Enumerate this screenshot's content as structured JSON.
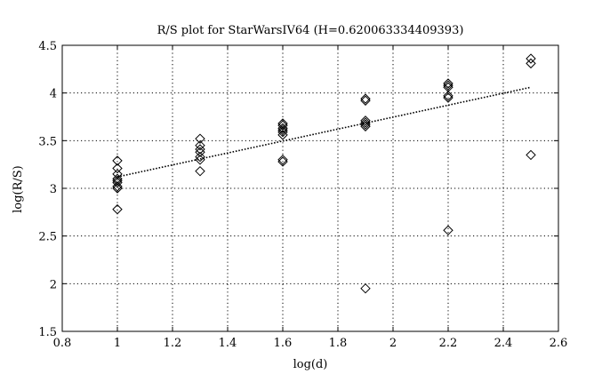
{
  "chart_data": {
    "type": "scatter",
    "title": "R/S plot for StarWarsIV64 (H=0.620063334409393)",
    "xlabel": "log(d)",
    "ylabel": "log(R/S)",
    "xlim": [
      0.8,
      2.6
    ],
    "ylim": [
      1.5,
      4.5
    ],
    "xticks": [
      0.8,
      1,
      1.2,
      1.4,
      1.6,
      1.8,
      2,
      2.2,
      2.4,
      2.6
    ],
    "xtick_labels": [
      "0.8",
      "1",
      "1.2",
      "1.4",
      "1.6",
      "1.8",
      "2",
      "2.2",
      "2.4",
      "2.6"
    ],
    "yticks": [
      1.5,
      2,
      2.5,
      3,
      3.5,
      4,
      4.5
    ],
    "ytick_labels": [
      "1.5",
      "2",
      "2.5",
      "3",
      "3.5",
      "4",
      "4.5"
    ],
    "grid": true,
    "marker": "diamond",
    "points": [
      [
        1.0,
        3.29
      ],
      [
        1.0,
        3.21
      ],
      [
        1.0,
        3.15
      ],
      [
        1.0,
        3.1
      ],
      [
        1.0,
        3.08
      ],
      [
        1.0,
        3.06
      ],
      [
        1.0,
        3.02
      ],
      [
        1.0,
        3.0
      ],
      [
        1.0,
        2.78
      ],
      [
        1.3,
        3.52
      ],
      [
        1.3,
        3.45
      ],
      [
        1.3,
        3.41
      ],
      [
        1.3,
        3.38
      ],
      [
        1.3,
        3.33
      ],
      [
        1.3,
        3.3
      ],
      [
        1.3,
        3.18
      ],
      [
        1.6,
        3.68
      ],
      [
        1.6,
        3.66
      ],
      [
        1.6,
        3.63
      ],
      [
        1.6,
        3.61
      ],
      [
        1.6,
        3.59
      ],
      [
        1.6,
        3.56
      ],
      [
        1.6,
        3.3
      ],
      [
        1.6,
        3.28
      ],
      [
        1.9,
        3.94
      ],
      [
        1.9,
        3.92
      ],
      [
        1.9,
        3.71
      ],
      [
        1.9,
        3.69
      ],
      [
        1.9,
        3.67
      ],
      [
        1.9,
        3.65
      ],
      [
        1.9,
        1.95
      ],
      [
        2.2,
        4.1
      ],
      [
        2.2,
        4.08
      ],
      [
        2.2,
        4.06
      ],
      [
        2.2,
        3.97
      ],
      [
        2.2,
        3.95
      ],
      [
        2.2,
        2.56
      ],
      [
        2.5,
        4.36
      ],
      [
        2.5,
        4.31
      ],
      [
        2.5,
        3.35
      ]
    ],
    "fit_line": {
      "x": [
        1.0,
        2.5
      ],
      "y": [
        3.12,
        4.06
      ],
      "style": "dotted"
    }
  }
}
